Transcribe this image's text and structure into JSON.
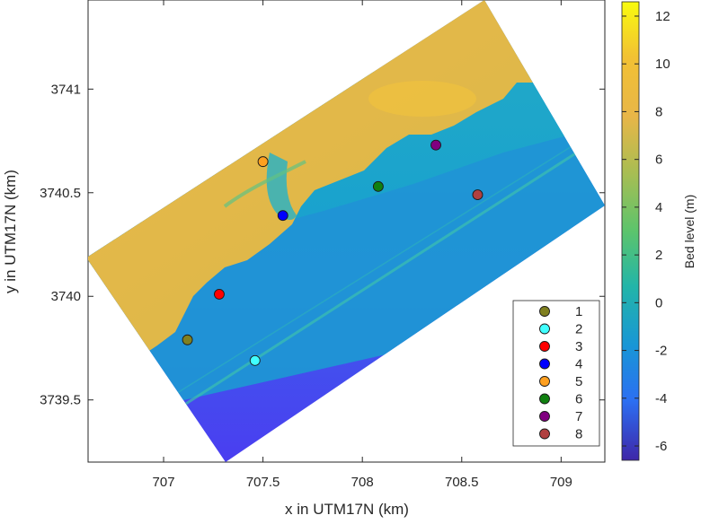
{
  "chart_data": {
    "type": "scatter",
    "background": "bed level map",
    "xlabel": "x in UTM17N (km)",
    "ylabel": "y in UTM17N (km)",
    "xlim": [
      706.62,
      709.22
    ],
    "ylim": [
      3739.2,
      3741.43
    ],
    "xticks": [
      "707",
      "707.5",
      "708",
      "708.5",
      "709"
    ],
    "xtick_values": [
      707,
      707.5,
      708,
      708.5,
      709
    ],
    "yticks": [
      "3739.5",
      "3740",
      "3740.5",
      "3741"
    ],
    "ytick_values": [
      3739.5,
      3740,
      3740.5,
      3741
    ],
    "colorbar": {
      "label": "Bed level (m)",
      "ticks": [
        "12",
        "10",
        "8",
        "6",
        "4",
        "2",
        "0",
        "-2",
        "-4",
        "-6"
      ],
      "tick_values": [
        12,
        10,
        8,
        6,
        4,
        2,
        0,
        -2,
        -4,
        -6
      ],
      "range": [
        -6.6,
        12.6
      ],
      "colormap": "parula"
    },
    "series": [
      {
        "name": "1",
        "x": 707.12,
        "y": 3739.79,
        "color": "#808020"
      },
      {
        "name": "2",
        "x": 707.46,
        "y": 3739.69,
        "color": "#40ffff"
      },
      {
        "name": "3",
        "x": 707.28,
        "y": 3740.01,
        "color": "#ff0000"
      },
      {
        "name": "4",
        "x": 707.6,
        "y": 3740.39,
        "color": "#0000ff"
      },
      {
        "name": "5",
        "x": 707.5,
        "y": 3740.65,
        "color": "#ffa020"
      },
      {
        "name": "6",
        "x": 708.08,
        "y": 3740.53,
        "color": "#108010"
      },
      {
        "name": "7",
        "x": 708.37,
        "y": 3740.73,
        "color": "#800080"
      },
      {
        "name": "8",
        "x": 708.58,
        "y": 3740.49,
        "color": "#b04040"
      }
    ],
    "legend_position": "bottom-right"
  }
}
